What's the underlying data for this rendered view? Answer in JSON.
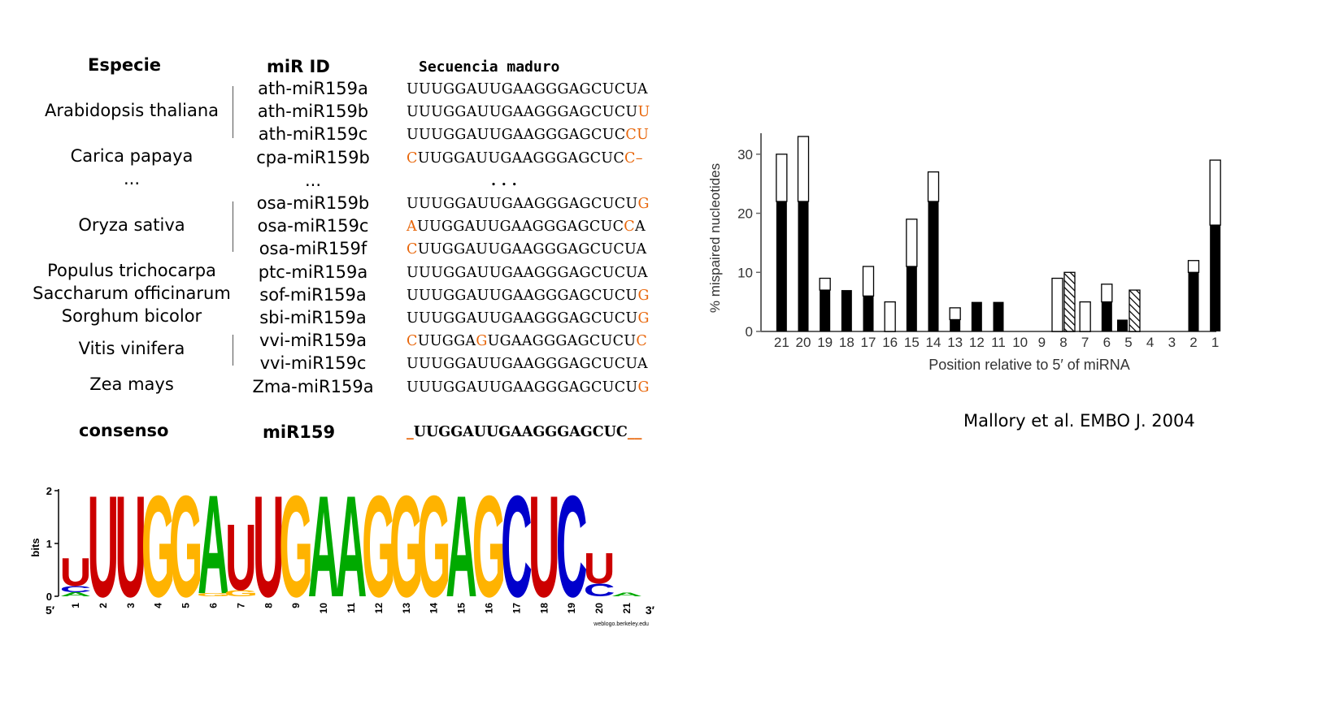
{
  "table": {
    "headers": {
      "species": "Especie",
      "mir_id": "miR ID",
      "sequence": "Secuencia maduro"
    },
    "species_labels": [
      "Arabidopsis thaliana",
      "Carica papaya",
      "...",
      "Oryza sativa",
      "Populus trichocarpa",
      "Saccharum officinarum",
      "Sorghum bicolor",
      "Vitis vinifera",
      "Zea mays"
    ],
    "rows": [
      {
        "id": "ath-miR159a",
        "seq": [
          [
            "UUUGGAUUGAAGGGAGCUCUA",
            false
          ]
        ]
      },
      {
        "id": "ath-miR159b",
        "seq": [
          [
            "UUUGGAUUGAAGGGAGCUCU",
            false
          ],
          [
            "U",
            true
          ]
        ]
      },
      {
        "id": "ath-miR159c",
        "seq": [
          [
            "UUUGGAUUGAAGGGAGCUC",
            false
          ],
          [
            "CU",
            true
          ]
        ]
      },
      {
        "id": "cpa-miR159b",
        "seq": [
          [
            "C",
            true
          ],
          [
            "UUGGAUUGAAGGGAGCUC",
            false
          ],
          [
            "C–",
            true
          ]
        ]
      },
      {
        "id": "...",
        "seq": [
          [
            ". . .",
            false
          ]
        ]
      },
      {
        "id": "osa-miR159b",
        "seq": [
          [
            "UUUGGAUUGAAGGGAGCUCU",
            false
          ],
          [
            "G",
            true
          ]
        ]
      },
      {
        "id": "osa-miR159c",
        "seq": [
          [
            "A",
            true
          ],
          [
            "UUGGAUUGAAGGGAGCUC",
            false
          ],
          [
            "C",
            true
          ],
          [
            "A",
            false
          ]
        ]
      },
      {
        "id": "osa-miR159f",
        "seq": [
          [
            "C",
            true
          ],
          [
            "UUGGAUUGAAGGGAGCUCUA",
            false
          ]
        ]
      },
      {
        "id": "ptc-miR159a",
        "seq": [
          [
            "UUUGGAUUGAAGGGAGCUCUA",
            false
          ]
        ]
      },
      {
        "id": "sof-miR159a",
        "seq": [
          [
            "UUUGGAUUGAAGGGAGCUCU",
            false
          ],
          [
            "G",
            true
          ]
        ]
      },
      {
        "id": "sbi-miR159a",
        "seq": [
          [
            "UUUGGAUUGAAGGGAGCUCU",
            false
          ],
          [
            "G",
            true
          ]
        ]
      },
      {
        "id": "vvi-miR159a",
        "seq": [
          [
            "C",
            true
          ],
          [
            "UUGGA",
            false
          ],
          [
            "G",
            true
          ],
          [
            "UGAAGGGAGCUCU",
            false
          ],
          [
            "C",
            true
          ]
        ]
      },
      {
        "id": "vvi-miR159c",
        "seq": [
          [
            "UUUGGAUUGAAGGGAGCUCUA",
            false
          ]
        ]
      },
      {
        "id": "Zma-miR159a",
        "seq": [
          [
            "UUUGGAUUGAAGGGAGCUCU",
            false
          ],
          [
            "G",
            true
          ]
        ]
      }
    ],
    "consensus": {
      "label": "consenso",
      "id": "miR159",
      "sequence": "UUGGAUUGAAGGGAGCUC",
      "prefix": "_",
      "suffix": "__"
    },
    "mismatch_color": "#e8660a"
  },
  "logo": {
    "ylabel": "bits",
    "yticks": [
      "0",
      "1",
      "2"
    ],
    "five_prime": "5′",
    "three_prime": "3′",
    "positions": [
      "1",
      "2",
      "3",
      "4",
      "5",
      "6",
      "7",
      "8",
      "9",
      "10",
      "11",
      "12",
      "13",
      "14",
      "15",
      "16",
      "17",
      "18",
      "19",
      "20",
      "21"
    ],
    "stacks": [
      [
        [
          "A",
          0.08
        ],
        [
          "C",
          0.12
        ],
        [
          "U",
          0.55
        ]
      ],
      [
        [
          "U",
          2.0
        ]
      ],
      [
        [
          "U",
          2.0
        ]
      ],
      [
        [
          "G",
          2.0
        ]
      ],
      [
        [
          "G",
          2.0
        ]
      ],
      [
        [
          "G",
          0.06
        ],
        [
          "A",
          1.95
        ]
      ],
      [
        [
          "G",
          0.12
        ],
        [
          "U",
          1.3
        ]
      ],
      [
        [
          "U",
          2.0
        ]
      ],
      [
        [
          "G",
          2.0
        ]
      ],
      [
        [
          "A",
          2.0
        ]
      ],
      [
        [
          "A",
          2.0
        ]
      ],
      [
        [
          "G",
          2.0
        ]
      ],
      [
        [
          "G",
          2.0
        ]
      ],
      [
        [
          "G",
          2.0
        ]
      ],
      [
        [
          "A",
          2.0
        ]
      ],
      [
        [
          "G",
          2.0
        ]
      ],
      [
        [
          "C",
          2.0
        ]
      ],
      [
        [
          "U",
          2.0
        ]
      ],
      [
        [
          "C",
          2.0
        ]
      ],
      [
        [
          "C",
          0.25
        ],
        [
          "U",
          0.6
        ]
      ],
      [
        [
          "A",
          0.07
        ]
      ]
    ],
    "colors": {
      "A": "#00aa00",
      "C": "#0000cc",
      "G": "#ffb300",
      "U": "#cc0000"
    },
    "credit": "weblogo.berkeley.edu"
  },
  "chart_data": {
    "type": "bar",
    "title": "",
    "xlabel": "Position relative to 5′ of miRNA",
    "ylabel": "% mispaired nucleotides",
    "ylim": [
      0,
      33
    ],
    "yticks": [
      "0",
      "10",
      "20",
      "30"
    ],
    "categories": [
      "21",
      "20",
      "19",
      "18",
      "17",
      "16",
      "15",
      "14",
      "13",
      "12",
      "11",
      "10",
      "9",
      "8",
      "7",
      "6",
      "5",
      "4",
      "3",
      "2",
      "1"
    ],
    "series": [
      {
        "style": "black",
        "values": [
          22,
          22,
          7,
          7,
          6,
          0,
          11,
          22,
          2,
          5,
          5,
          0,
          0,
          0,
          0,
          5,
          2,
          0,
          0,
          10,
          18
        ]
      },
      {
        "style": "white",
        "values": [
          8,
          11,
          2,
          0,
          5,
          5,
          8,
          5,
          2,
          0,
          0,
          0,
          0,
          9,
          5,
          3,
          0,
          0,
          0,
          2,
          11
        ]
      },
      {
        "style": "hatched",
        "values": [
          0,
          0,
          0,
          0,
          0,
          0,
          0,
          0,
          0,
          0,
          0,
          0,
          0,
          10,
          0,
          0,
          7,
          0,
          0,
          0,
          0
        ]
      }
    ]
  },
  "citation": "Mallory et al. EMBO J. 2004"
}
